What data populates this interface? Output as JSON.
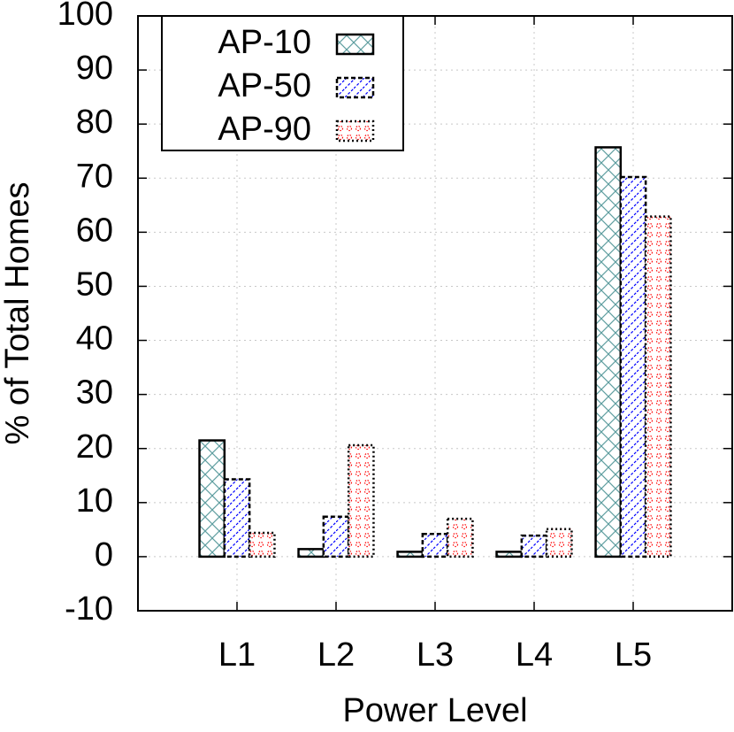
{
  "chart_data": {
    "type": "bar",
    "xlabel": "Power Level",
    "ylabel": "% of Total Homes",
    "categories": [
      "L1",
      "L2",
      "L3",
      "L4",
      "L5"
    ],
    "series": [
      {
        "name": "AP-10",
        "color": "#5f9ea0",
        "values": [
          21.5,
          1.4,
          0.9,
          0.9,
          75.7
        ]
      },
      {
        "name": "AP-50",
        "color": "#0000ff",
        "values": [
          14.3,
          7.4,
          4.2,
          3.9,
          70.2
        ]
      },
      {
        "name": "AP-90",
        "color": "#ff0000",
        "values": [
          4.4,
          20.6,
          7.0,
          5.1,
          62.9
        ]
      }
    ],
    "ylim": [
      -10,
      100
    ],
    "yticks": [
      -10,
      0,
      10,
      20,
      30,
      40,
      50,
      60,
      70,
      80,
      90,
      100
    ],
    "grid": true,
    "legend": "upper-left"
  }
}
